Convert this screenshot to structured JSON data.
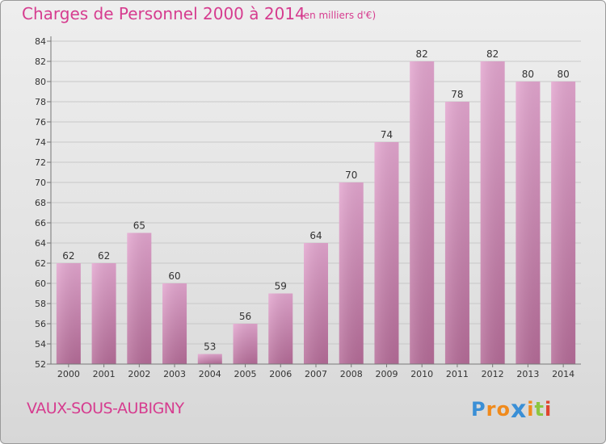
{
  "title": "Charges de Personnel 2000 à 2014",
  "subtitle": "(en milliers d'€)",
  "place": "VAUX-SOUS-AUBIGNY",
  "logo": {
    "letters": [
      "P",
      "r",
      "o",
      "x",
      "i",
      "t",
      "i"
    ],
    "colors": [
      "#3a8fd6",
      "#f08a1c",
      "#f08a1c",
      "#3a8fd6",
      "#f08a1c",
      "#8cc63f",
      "#e0452f"
    ]
  },
  "colors": {
    "bar_top": "#e3a6cf",
    "bar_bottom": "#b56c98",
    "text": "#d63c8f"
  },
  "chart_data": {
    "type": "bar",
    "categories": [
      "2000",
      "2001",
      "2002",
      "2003",
      "2004",
      "2005",
      "2006",
      "2007",
      "2008",
      "2009",
      "2010",
      "2011",
      "2012",
      "2013",
      "2014"
    ],
    "values": [
      62,
      62,
      65,
      60,
      53,
      56,
      59,
      64,
      70,
      74,
      82,
      78,
      82,
      80,
      80
    ],
    "yticks": [
      52,
      54,
      56,
      58,
      60,
      62,
      64,
      66,
      68,
      70,
      72,
      74,
      76,
      78,
      80,
      82,
      84
    ],
    "ylim": [
      52,
      84
    ],
    "grid": true,
    "title": "Charges de Personnel 2000 à 2014",
    "xlabel": "",
    "ylabel": ""
  }
}
